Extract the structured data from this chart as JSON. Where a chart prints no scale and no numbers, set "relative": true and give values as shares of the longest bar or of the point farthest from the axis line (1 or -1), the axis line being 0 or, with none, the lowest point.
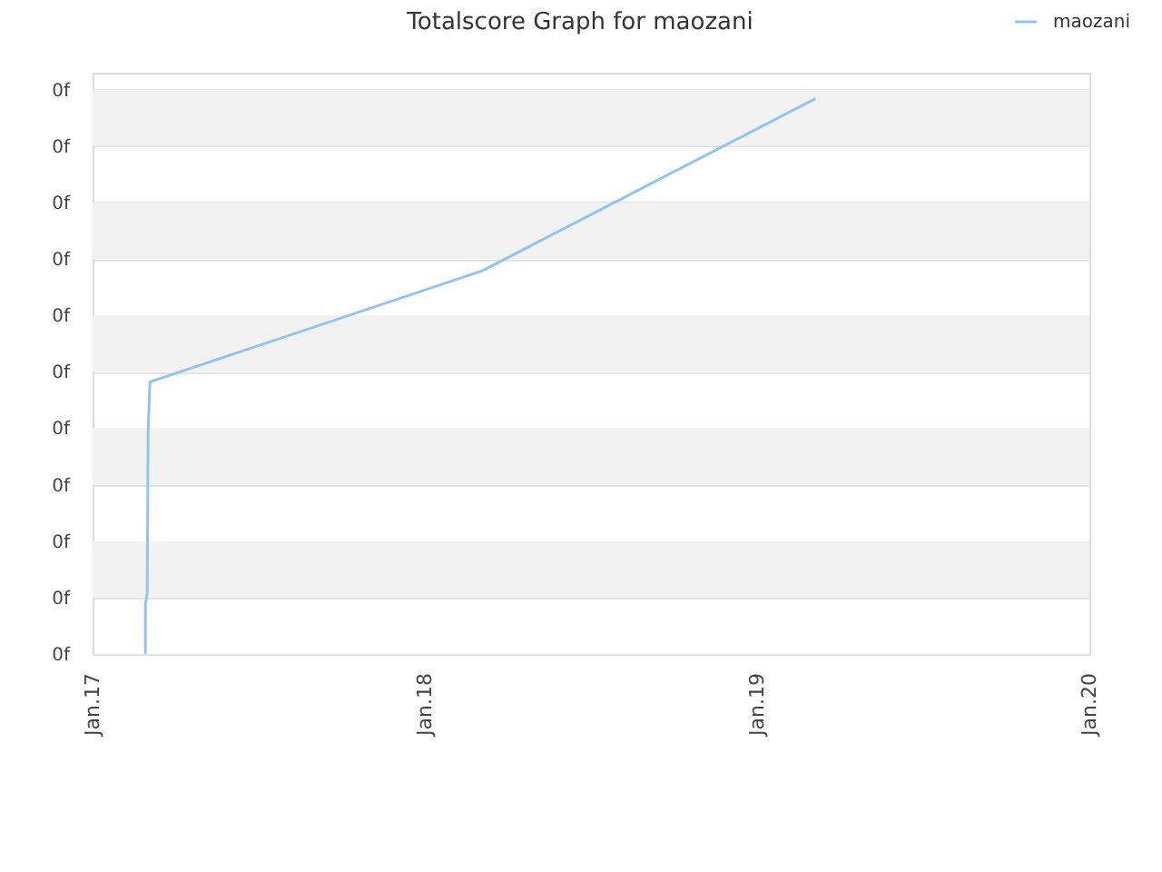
{
  "chart_data": {
    "type": "line",
    "title": "Totalscore Graph for maozani",
    "x": [
      "2017-02-28",
      "2017-02-28",
      "2017-03-02",
      "2017-03-03",
      "2017-03-05",
      "2018-03-05",
      "2019-03-06"
    ],
    "series": [
      {
        "name": "maozani",
        "color": "#91c3f5",
        "values": [
          0,
          0.09,
          0.11,
          0.4,
          0.49,
          0.69,
          1
        ]
      }
    ],
    "relative": true,
    "xlim": [
      "2017-01-01",
      "2020-01-01"
    ],
    "xticks": [
      {
        "value": "2017-01-01",
        "label": "Jan.17"
      },
      {
        "value": "2018-01-01",
        "label": "Jan.18"
      },
      {
        "value": "2019-01-01",
        "label": "Jan.19"
      },
      {
        "value": "2020-01-01",
        "label": "Jan.20"
      }
    ],
    "annotations": [
      "0f",
      "0f",
      "0f",
      "0f",
      "0f",
      "0f",
      "0f",
      "0f",
      "0f",
      "0f",
      "0f"
    ],
    "bands": [
      {
        "axis": "y",
        "from": 0.102,
        "to": 0.203,
        "color": "#f2f2f2"
      },
      {
        "axis": "y",
        "from": 0.305,
        "to": 0.407,
        "color": "#f2f2f2"
      },
      {
        "axis": "y",
        "from": 0.508,
        "to": 0.61,
        "color": "#f2f2f2"
      },
      {
        "axis": "y",
        "from": 0.711,
        "to": 0.813,
        "color": "#f2f2f2"
      },
      {
        "axis": "y",
        "from": 0.915,
        "to": 1.016,
        "color": "#f2f2f2"
      }
    ],
    "grid": "y",
    "legend": "top right",
    "line_style": "solid"
  }
}
